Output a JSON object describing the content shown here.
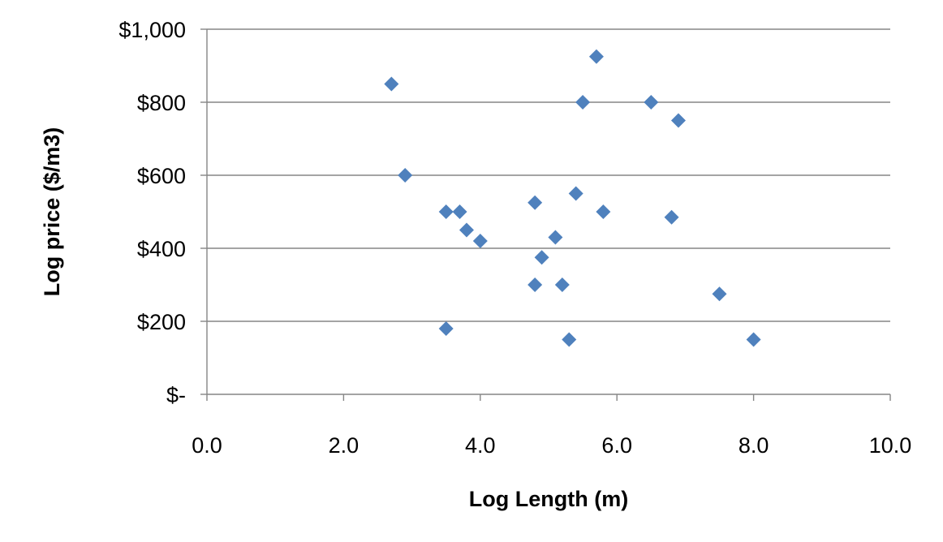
{
  "chart_data": {
    "type": "scatter",
    "title": "",
    "xlabel": "Log Length (m)",
    "ylabel": "Log price ($/m3)",
    "xlim": [
      0,
      10
    ],
    "ylim": [
      0,
      1000
    ],
    "x_ticks": [
      0,
      2,
      4,
      6,
      8,
      10
    ],
    "x_tick_labels": [
      "0.0",
      "2.0",
      "4.0",
      "6.0",
      "8.0",
      "10.0"
    ],
    "y_ticks": [
      0,
      200,
      400,
      600,
      800,
      1000
    ],
    "y_tick_labels": [
      "$-",
      "$200",
      "$400",
      "$600",
      "$800",
      "$1,000"
    ],
    "grid": "horizontal",
    "legend": "none",
    "marker": "diamond",
    "marker_color": "#4f81bd",
    "points": [
      {
        "x": 2.7,
        "y": 850
      },
      {
        "x": 2.9,
        "y": 600
      },
      {
        "x": 3.5,
        "y": 500
      },
      {
        "x": 3.7,
        "y": 500
      },
      {
        "x": 3.8,
        "y": 450
      },
      {
        "x": 4.0,
        "y": 420
      },
      {
        "x": 3.5,
        "y": 180
      },
      {
        "x": 4.8,
        "y": 525
      },
      {
        "x": 4.8,
        "y": 300
      },
      {
        "x": 4.9,
        "y": 375
      },
      {
        "x": 5.1,
        "y": 430
      },
      {
        "x": 5.2,
        "y": 300
      },
      {
        "x": 5.3,
        "y": 150
      },
      {
        "x": 5.4,
        "y": 550
      },
      {
        "x": 5.5,
        "y": 800
      },
      {
        "x": 5.7,
        "y": 925
      },
      {
        "x": 5.8,
        "y": 500
      },
      {
        "x": 6.5,
        "y": 800
      },
      {
        "x": 6.8,
        "y": 485
      },
      {
        "x": 6.9,
        "y": 750
      },
      {
        "x": 7.5,
        "y": 275
      },
      {
        "x": 8.0,
        "y": 150
      }
    ]
  }
}
